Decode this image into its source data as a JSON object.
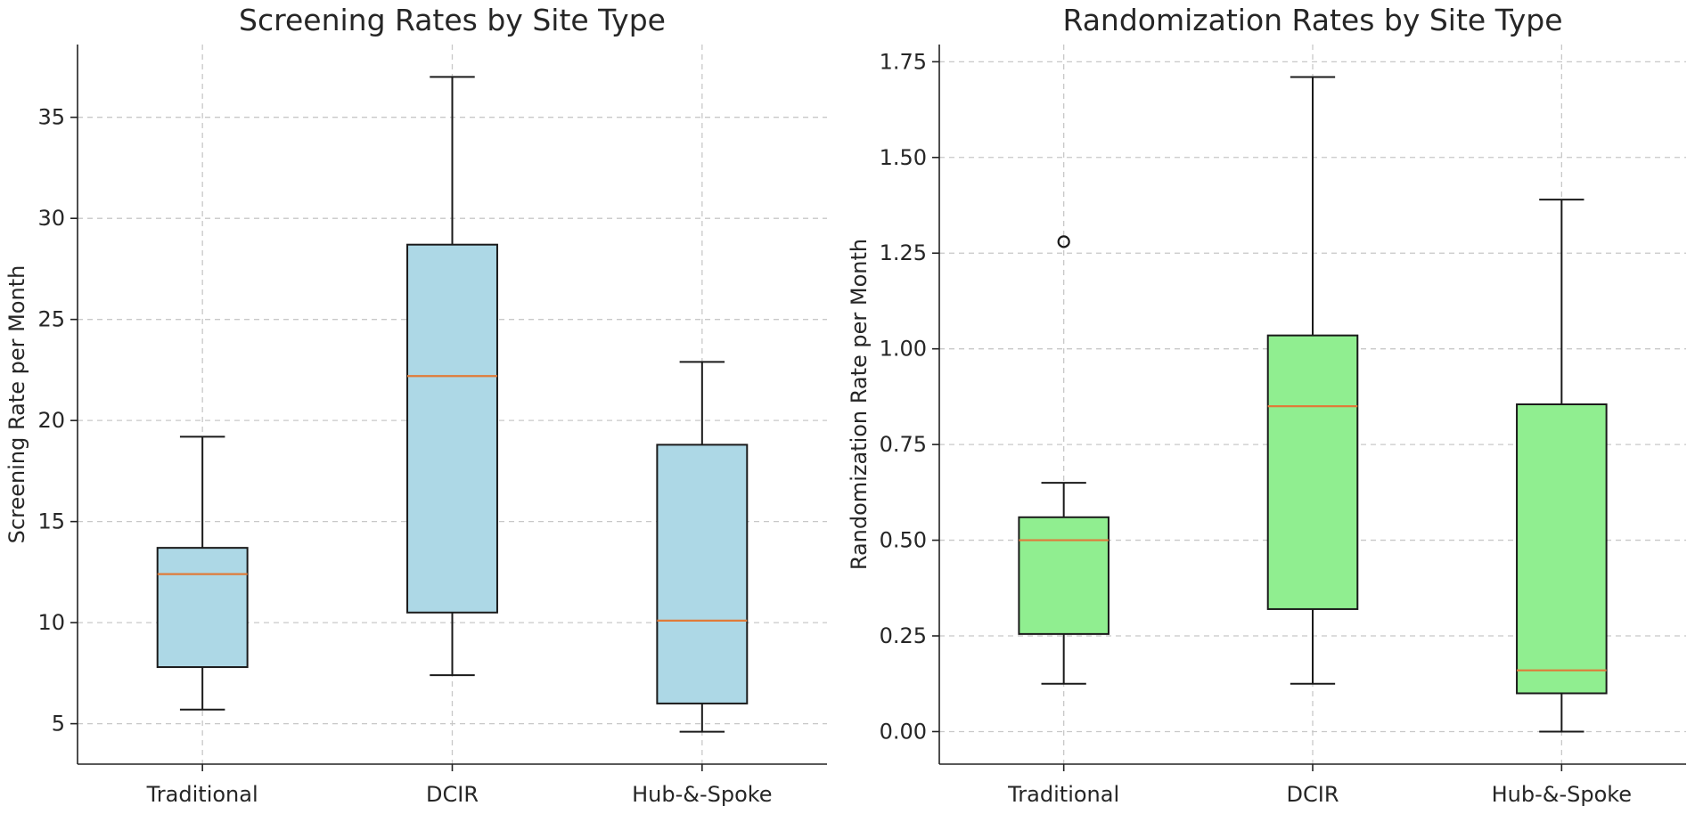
{
  "chart_data": [
    {
      "type": "boxplot",
      "title": "Screening Rates by Site Type",
      "xlabel": "",
      "ylabel": "Screening Rate per Month",
      "categories": [
        "Traditional",
        "DCIR",
        "Hub-&-Spoke"
      ],
      "ylim": [
        3.0,
        38.6
      ],
      "yticks": [
        5,
        10,
        15,
        20,
        25,
        30,
        35
      ],
      "ytick_labels": [
        "5",
        "10",
        "15",
        "20",
        "25",
        "30",
        "35"
      ],
      "grid": true,
      "box_color": "#add8e6",
      "median_color": "#e07b39",
      "boxes": [
        {
          "category": "Traditional",
          "whisker_low": 5.7,
          "q1": 7.8,
          "median": 12.4,
          "q3": 13.7,
          "whisker_high": 19.2,
          "outliers": []
        },
        {
          "category": "DCIR",
          "whisker_low": 7.4,
          "q1": 10.5,
          "median": 22.2,
          "q3": 28.7,
          "whisker_high": 37.0,
          "outliers": []
        },
        {
          "category": "Hub-&-Spoke",
          "whisker_low": 4.6,
          "q1": 6.0,
          "median": 10.1,
          "q3": 18.8,
          "whisker_high": 22.9,
          "outliers": []
        }
      ]
    },
    {
      "type": "boxplot",
      "title": "Randomization Rates by Site Type",
      "xlabel": "",
      "ylabel": "Randomization Rate per Month",
      "categories": [
        "Traditional",
        "DCIR",
        "Hub-&-Spoke"
      ],
      "ylim": [
        -0.085,
        1.795
      ],
      "yticks": [
        0.0,
        0.25,
        0.5,
        0.75,
        1.0,
        1.25,
        1.5,
        1.75
      ],
      "ytick_labels": [
        "0.00",
        "0.25",
        "0.50",
        "0.75",
        "1.00",
        "1.25",
        "1.50",
        "1.75"
      ],
      "grid": true,
      "box_color": "#90ee90",
      "median_color": "#e07b39",
      "boxes": [
        {
          "category": "Traditional",
          "whisker_low": 0.125,
          "q1": 0.255,
          "median": 0.5,
          "q3": 0.56,
          "whisker_high": 0.65,
          "outliers": [
            1.28
          ]
        },
        {
          "category": "DCIR",
          "whisker_low": 0.125,
          "q1": 0.32,
          "median": 0.85,
          "q3": 1.035,
          "whisker_high": 1.71,
          "outliers": []
        },
        {
          "category": "Hub-&-Spoke",
          "whisker_low": 0.0,
          "q1": 0.1,
          "median": 0.16,
          "q3": 0.855,
          "whisker_high": 1.39,
          "outliers": []
        }
      ]
    }
  ]
}
